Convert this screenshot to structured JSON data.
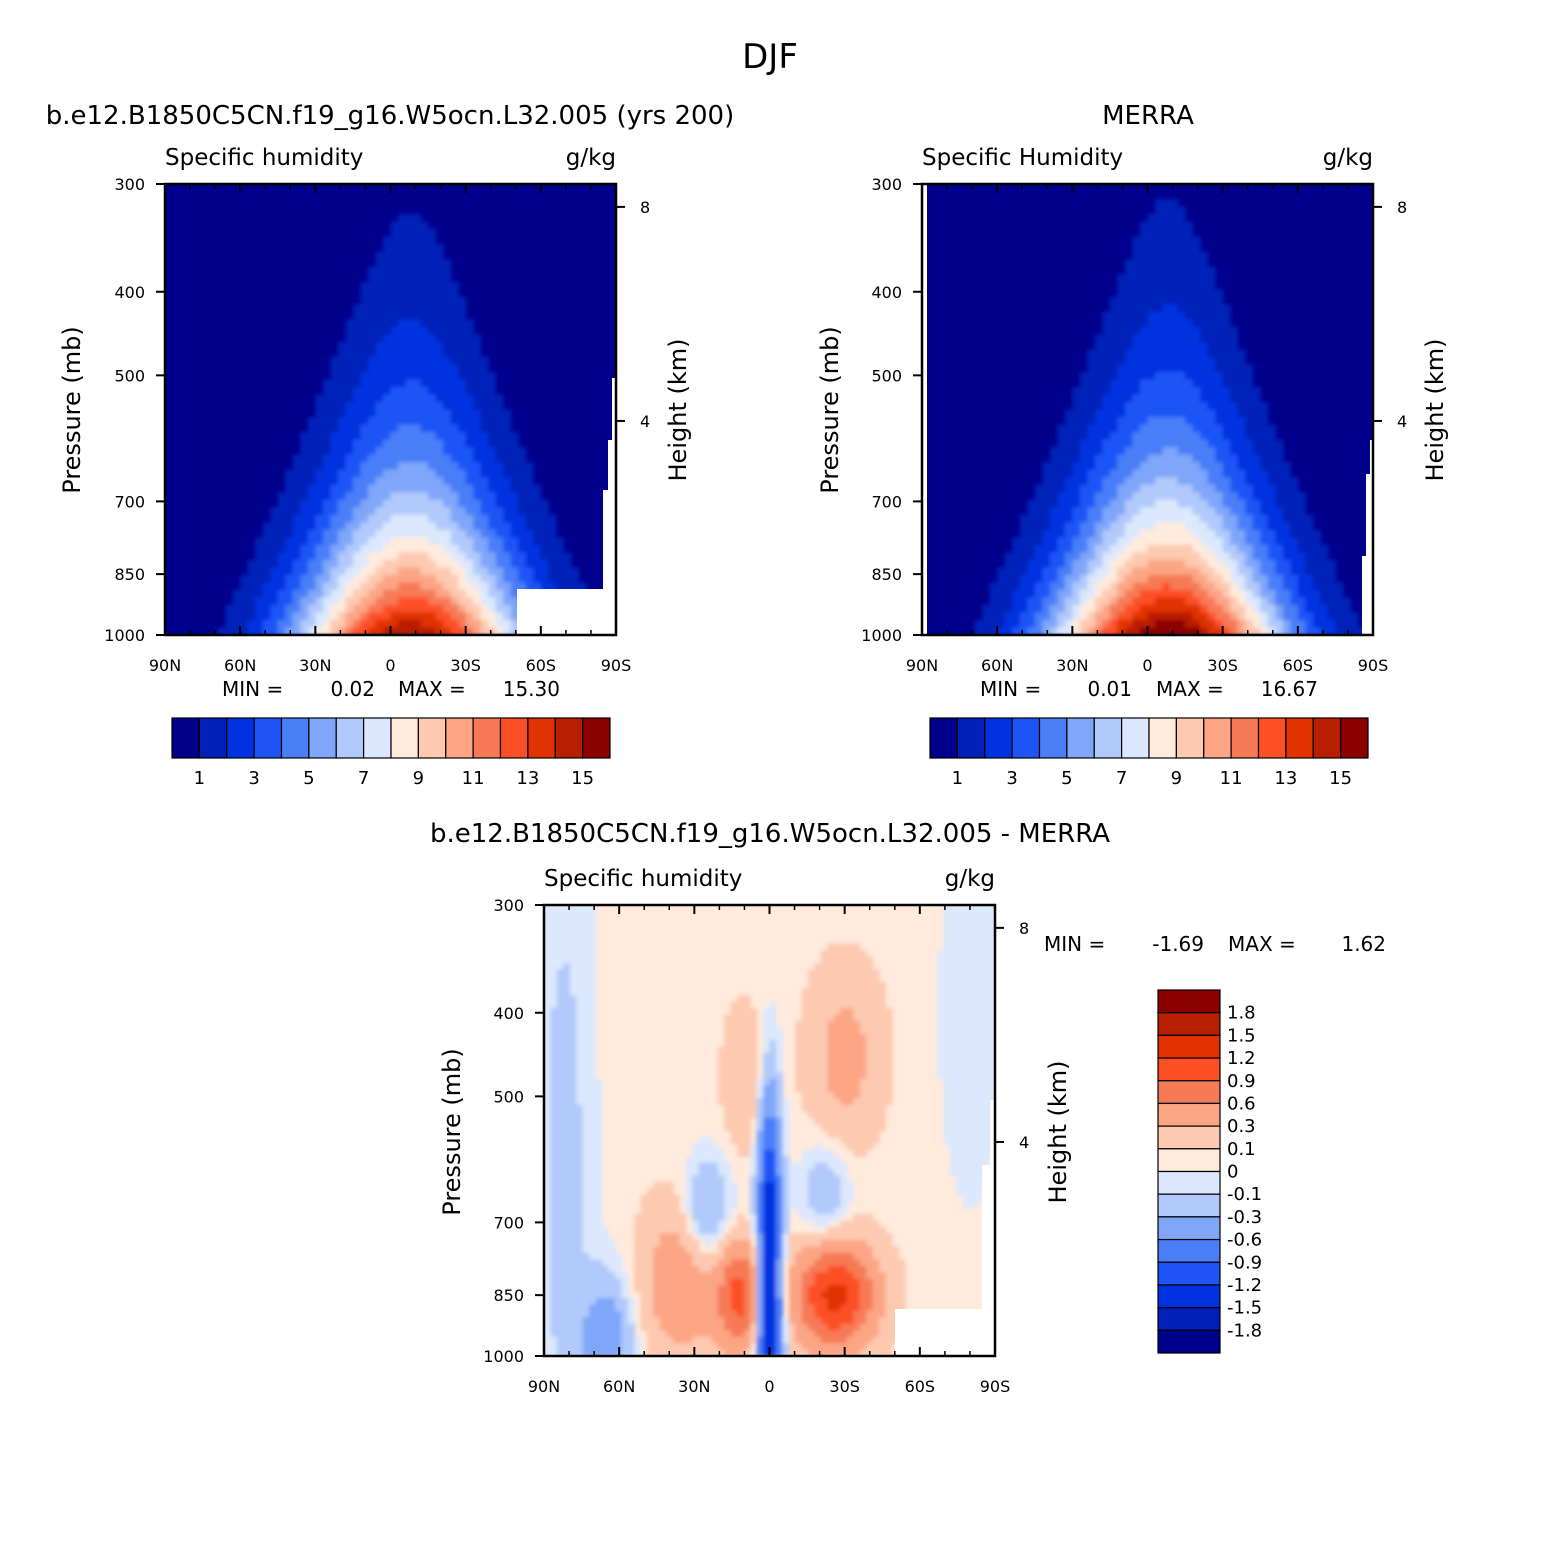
{
  "page_title": "DJF",
  "colors": {
    "full_levels": [
      "#00008c",
      "#0020b8",
      "#0033e0",
      "#1e54f6",
      "#4a7ef8",
      "#7fa6f9",
      "#b1c9fb",
      "#dbe8fd",
      "#ffeadc",
      "#fdc9b1",
      "#fba585",
      "#f77a56",
      "#fd4f25",
      "#e03300",
      "#b81e00",
      "#8c0000"
    ],
    "diff_levels": [
      "#00008c",
      "#0020b8",
      "#0033e0",
      "#1e54f6",
      "#4a7ef8",
      "#7fa6f9",
      "#b1c9fb",
      "#dbe8fd",
      "#ffeadc",
      "#fdc9b1",
      "#fba585",
      "#f77a56",
      "#fd4f25",
      "#e03300",
      "#b81e00",
      "#8c0000"
    ]
  },
  "chart_data": [
    {
      "id": "model",
      "type": "heatmap",
      "title": "b.e12.B1850C5CN.f19_g16.W5ocn.L32.005 (yrs 200)",
      "left_string": "Specific humidity",
      "right_string": "g/kg",
      "xlabel": "",
      "ylabel": "Pressure (mb)",
      "y2label": "Height (km)",
      "xticks": [
        "90N",
        "60N",
        "30N",
        "0",
        "30S",
        "60S",
        "90S"
      ],
      "yticks": [
        300,
        400,
        500,
        700,
        850,
        1000
      ],
      "y2ticks": [
        8,
        4
      ],
      "ylim": [
        1000,
        300
      ],
      "min_label": "MIN =",
      "min_value": "0.02",
      "max_label": "MAX =",
      "max_value": "15.30",
      "colorbar_labels": [
        "1",
        "3",
        "5",
        "7",
        "9",
        "11",
        "13",
        "15"
      ]
    },
    {
      "id": "obs",
      "type": "heatmap",
      "title": "MERRA",
      "left_string": "Specific Humidity",
      "right_string": "g/kg",
      "xlabel": "",
      "ylabel": "Pressure (mb)",
      "y2label": "Height (km)",
      "xticks": [
        "90N",
        "60N",
        "30N",
        "0",
        "30S",
        "60S",
        "90S"
      ],
      "yticks": [
        300,
        400,
        500,
        700,
        850,
        1000
      ],
      "y2ticks": [
        8,
        4
      ],
      "ylim": [
        1000,
        300
      ],
      "min_label": "MIN =",
      "min_value": "0.01",
      "max_label": "MAX =",
      "max_value": "16.67",
      "colorbar_labels": [
        "1",
        "3",
        "5",
        "7",
        "9",
        "11",
        "13",
        "15"
      ]
    },
    {
      "id": "diff",
      "type": "heatmap",
      "title": "b.e12.B1850C5CN.f19_g16.W5ocn.L32.005 - MERRA",
      "left_string": "Specific humidity",
      "right_string": "g/kg",
      "xlabel": "",
      "ylabel": "Pressure (mb)",
      "y2label": "Height (km)",
      "xticks": [
        "90N",
        "60N",
        "30N",
        "0",
        "30S",
        "60S",
        "90S"
      ],
      "yticks": [
        300,
        400,
        500,
        700,
        850,
        1000
      ],
      "y2ticks": [
        8,
        4
      ],
      "ylim": [
        1000,
        300
      ],
      "min_label": "MIN =",
      "min_value": "-1.69",
      "max_label": "MAX =",
      "max_value": "1.62",
      "colorbar_labels": [
        "1.8",
        "1.5",
        "1.2",
        "0.9",
        "0.6",
        "0.3",
        "0.1",
        "0",
        "-0.1",
        "-0.3",
        "-0.6",
        "-0.9",
        "-1.2",
        "-1.5",
        "-1.8"
      ]
    }
  ]
}
